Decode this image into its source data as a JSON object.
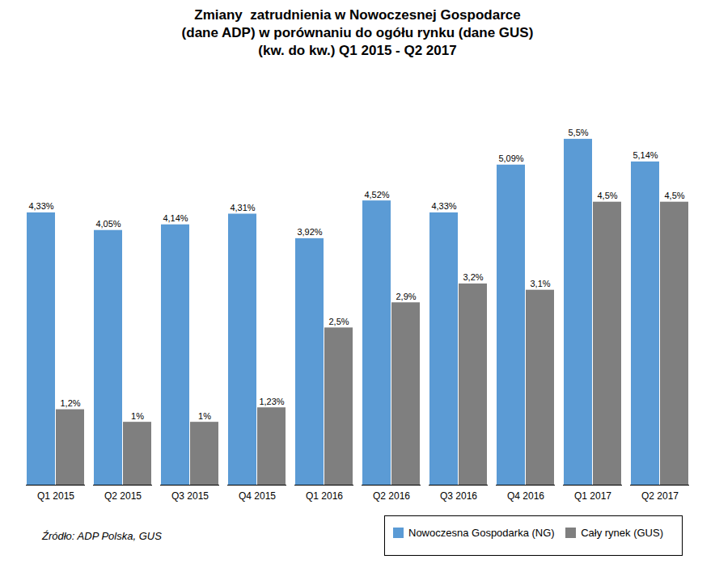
{
  "chart_data": {
    "type": "bar",
    "title": "Zmiany  zatrudnienia w Nowoczesnej Gospodarce\n(dane ADP) w porównaniu do ogółu rynku (dane GUS)\n(kw. do kw.) Q1 2015 - Q2 2017",
    "source": "Źródło: ADP Polska, GUS",
    "categories": [
      "Q1 2015",
      "Q2 2015",
      "Q3 2015",
      "Q4 2015",
      "Q1 2016",
      "Q2 2016",
      "Q3 2016",
      "Q4 2016",
      "Q1 2017",
      "Q2 2017"
    ],
    "series": [
      {
        "name": "Nowoczesna Gospodarka (NG)",
        "color": "#5B9BD5",
        "values": [
          4.33,
          4.05,
          4.14,
          4.31,
          3.92,
          4.52,
          4.33,
          5.09,
          5.5,
          5.14
        ],
        "value_labels": [
          "4,33%",
          "4,05%",
          "4,14%",
          "4,31%",
          "3,92%",
          "4,52%",
          "4,33%",
          "5,09%",
          "5,5%",
          "5,14%"
        ]
      },
      {
        "name": "Cały rynek (GUS)",
        "color": "#7F7F7F",
        "values": [
          1.2,
          1.0,
          1.0,
          1.23,
          2.5,
          2.9,
          3.2,
          3.1,
          4.5,
          4.5
        ],
        "value_labels": [
          "1,2%",
          "1%",
          "1%",
          "1,23%",
          "2,5%",
          "2,9%",
          "3,2%",
          "3,1%",
          "4,5%",
          "4,5%"
        ]
      }
    ],
    "ylim": [
      0,
      6.5
    ],
    "tick_labels": "x",
    "data_labels": true,
    "grid": false,
    "legend": "bottom"
  }
}
